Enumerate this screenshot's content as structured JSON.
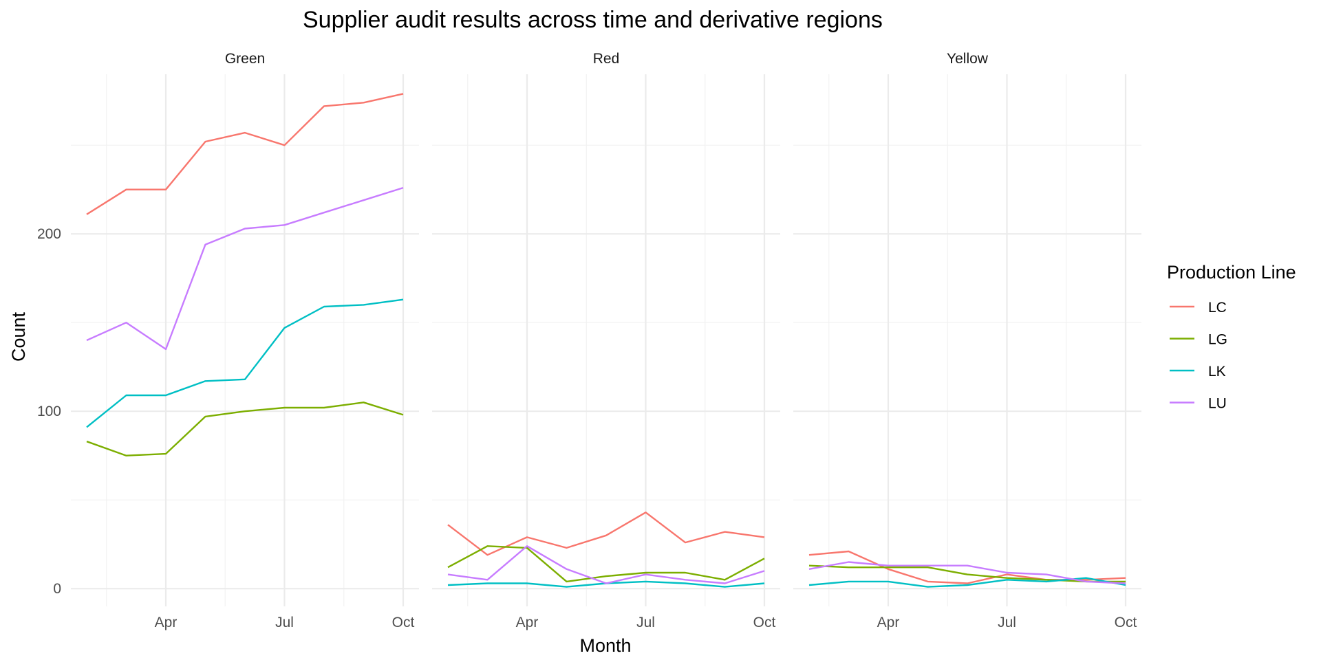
{
  "chart_data": {
    "type": "line",
    "title": "Supplier audit results across time and derivative regions",
    "xlabel": "Month",
    "ylabel": "Count",
    "ylim": [
      -10,
      290
    ],
    "y_ticks": [
      0,
      100,
      200
    ],
    "x_ticks": [
      {
        "month": 4,
        "label": "Apr"
      },
      {
        "month": 7,
        "label": "Jul"
      },
      {
        "month": 10,
        "label": "Oct"
      }
    ],
    "x": [
      2,
      3,
      4,
      5,
      6,
      7,
      8,
      9,
      10
    ],
    "xlim": [
      1.6,
      10.4
    ],
    "grid": true,
    "legend": {
      "title": "Production Line",
      "position": "right",
      "entries": [
        "LC",
        "LG",
        "LK",
        "LU"
      ]
    },
    "colors": {
      "LC": "#F8766D",
      "LG": "#7CAE00",
      "LK": "#00BFC4",
      "LU": "#C77CFF"
    },
    "panels": [
      {
        "name": "Green",
        "series": [
          {
            "name": "LC",
            "values": [
              211,
              225,
              225,
              252,
              257,
              250,
              272,
              274,
              279
            ]
          },
          {
            "name": "LG",
            "values": [
              83,
              75,
              76,
              97,
              100,
              102,
              102,
              105,
              98
            ]
          },
          {
            "name": "LK",
            "values": [
              91,
              109,
              109,
              117,
              118,
              147,
              159,
              160,
              163
            ]
          },
          {
            "name": "LU",
            "values": [
              140,
              150,
              135,
              194,
              203,
              205,
              212,
              219,
              226
            ]
          }
        ]
      },
      {
        "name": "Red",
        "series": [
          {
            "name": "LC",
            "values": [
              36,
              19,
              29,
              23,
              30,
              43,
              26,
              32,
              29
            ]
          },
          {
            "name": "LG",
            "values": [
              12,
              24,
              23,
              4,
              7,
              9,
              9,
              5,
              17
            ]
          },
          {
            "name": "LK",
            "values": [
              2,
              3,
              3,
              1,
              3,
              4,
              3,
              1,
              3
            ]
          },
          {
            "name": "LU",
            "values": [
              8,
              5,
              24,
              11,
              3,
              8,
              5,
              3,
              10
            ]
          }
        ]
      },
      {
        "name": "Yellow",
        "series": [
          {
            "name": "LC",
            "values": [
              19,
              21,
              11,
              4,
              3,
              8,
              5,
              5,
              6
            ]
          },
          {
            "name": "LG",
            "values": [
              13,
              12,
              12,
              12,
              8,
              6,
              5,
              4,
              4
            ]
          },
          {
            "name": "LK",
            "values": [
              2,
              4,
              4,
              1,
              2,
              5,
              4,
              6,
              2
            ]
          },
          {
            "name": "LU",
            "values": [
              11,
              15,
              13,
              13,
              13,
              9,
              8,
              4,
              3
            ]
          }
        ]
      }
    ]
  }
}
